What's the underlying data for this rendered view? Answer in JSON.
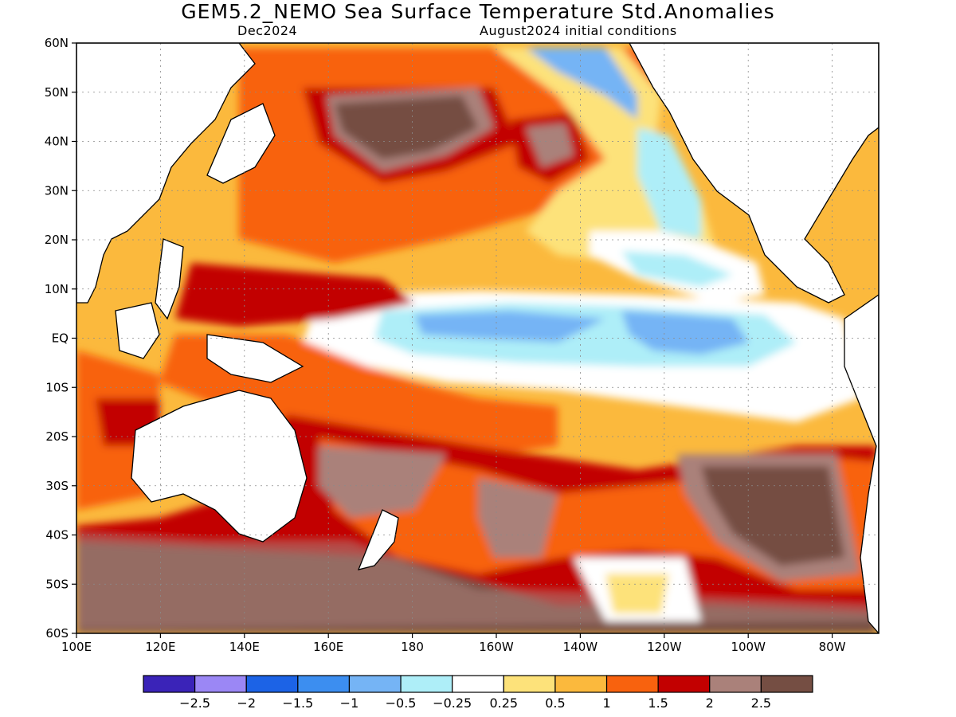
{
  "title": "GEM5.2_NEMO Sea Surface Temperature Std.Anomalies",
  "subtitle_left": "Dec2024",
  "subtitle_right": "August2024 initial conditions",
  "lat_labels": [
    "60N",
    "50N",
    "40N",
    "30N",
    "20N",
    "10N",
    "EQ",
    "10S",
    "20S",
    "30S",
    "40S",
    "50S",
    "60S"
  ],
  "lon_labels": [
    "100E",
    "120E",
    "140E",
    "160E",
    "180",
    "160W",
    "140W",
    "120W",
    "100W",
    "80W"
  ],
  "legend": {
    "colors": [
      "#3a23b8",
      "#9b87f5",
      "#1c63e6",
      "#3c8ef0",
      "#75b4f5",
      "#aeeef8",
      "#ffffff",
      "#fde27a",
      "#fbb93d",
      "#f8620e",
      "#c20000",
      "#aa817a",
      "#754e43"
    ],
    "labels": [
      "-2.5",
      "-2",
      "-1.5",
      "-1",
      "-0.5",
      "-0.25",
      "0.25",
      "0.5",
      "1",
      "1.5",
      "2",
      "2.5"
    ]
  }
}
